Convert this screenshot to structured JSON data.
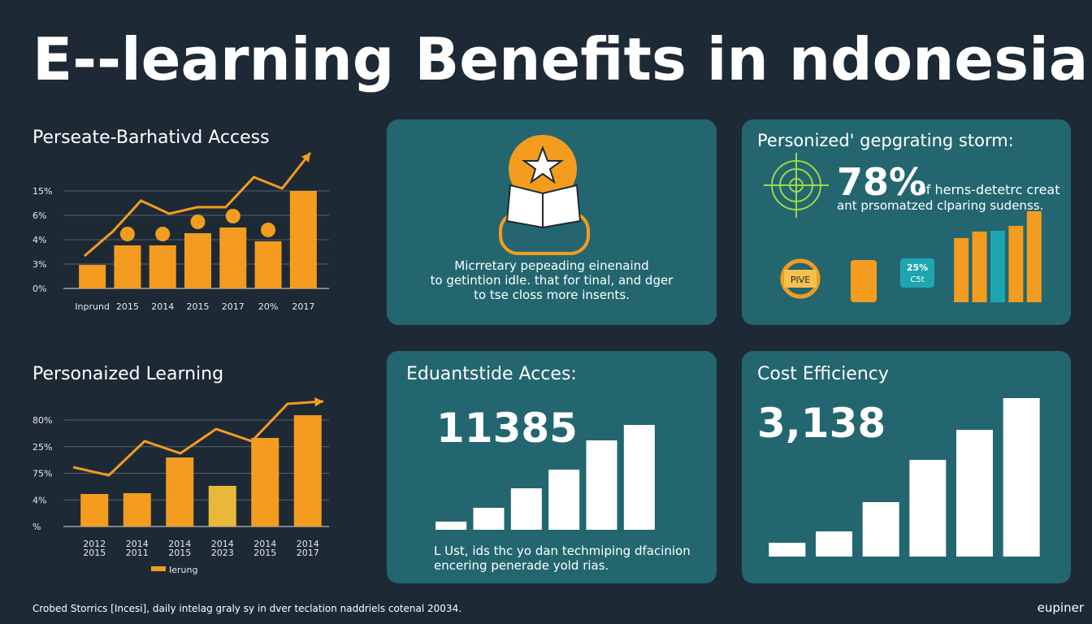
{
  "title": "E--learning Benefits in  ndonesia",
  "panels": {
    "access": {
      "heading": "Perseate-Barhativd Access",
      "yticks": [
        "15%",
        "6%",
        "4%",
        "3%",
        "0%"
      ],
      "categories": [
        "Inprund",
        "2015",
        "2014",
        "2015",
        "2017",
        "20%",
        "2017"
      ],
      "values": [
        29,
        53,
        53,
        68,
        75,
        58,
        120
      ],
      "trend": [
        40,
        70,
        108,
        92,
        100,
        100,
        137,
        123,
        167
      ]
    },
    "personalized": {
      "heading": "Personaized Learning",
      "yticks": [
        "80%",
        "25%",
        "75%",
        "4%",
        "%"
      ],
      "categories": [
        [
          "2012",
          "2015"
        ],
        [
          "2014",
          "2011"
        ],
        [
          "2014",
          "2015"
        ],
        [
          "2014",
          "2023"
        ],
        [
          "2014",
          "2015"
        ],
        [
          "2014",
          "2017"
        ]
      ],
      "values": [
        40,
        41,
        85,
        50,
        109,
        137
      ],
      "trend": [
        73,
        63,
        105,
        90,
        120,
        105,
        151,
        154
      ],
      "legend": "Ierung"
    },
    "info": {
      "lines": [
        "Micrretary pepeading einenaind",
        "to getintion idle. that for tinal, and dger",
        "to tse closs more insents."
      ]
    },
    "storm": {
      "heading": "Personized' gepgrating storm:",
      "stat": "78%",
      "stat_text": "of herns-detetrc creat",
      "subtext": "ant prsomatzed clparing sudenss.",
      "icon_labels": [
        "PIVE",
        "25%",
        "C5t"
      ],
      "values": [
        79,
        87,
        88,
        94,
        112
      ],
      "colors": [
        "#f39c1f",
        "#f39c1f",
        "#1fa5b0",
        "#f39c1f",
        "#f39c1f"
      ]
    },
    "edu": {
      "heading": "Eduantstide Acces:",
      "stat": "11385",
      "values": [
        10,
        27,
        51,
        74,
        110,
        129
      ],
      "lines": [
        "L Ust, ids thc yo dan techmiping dfacinion",
        "encering penerade yold rias."
      ]
    },
    "cost": {
      "heading": "Cost Efficiency",
      "stat": "3,138",
      "values": [
        17,
        31,
        67,
        119,
        156,
        195
      ]
    }
  },
  "footer": "Crobed Storrics [Incesi], daily intelag graly sy in dver teclation naddriels cotenal 20034.",
  "brand": "eupiner"
}
